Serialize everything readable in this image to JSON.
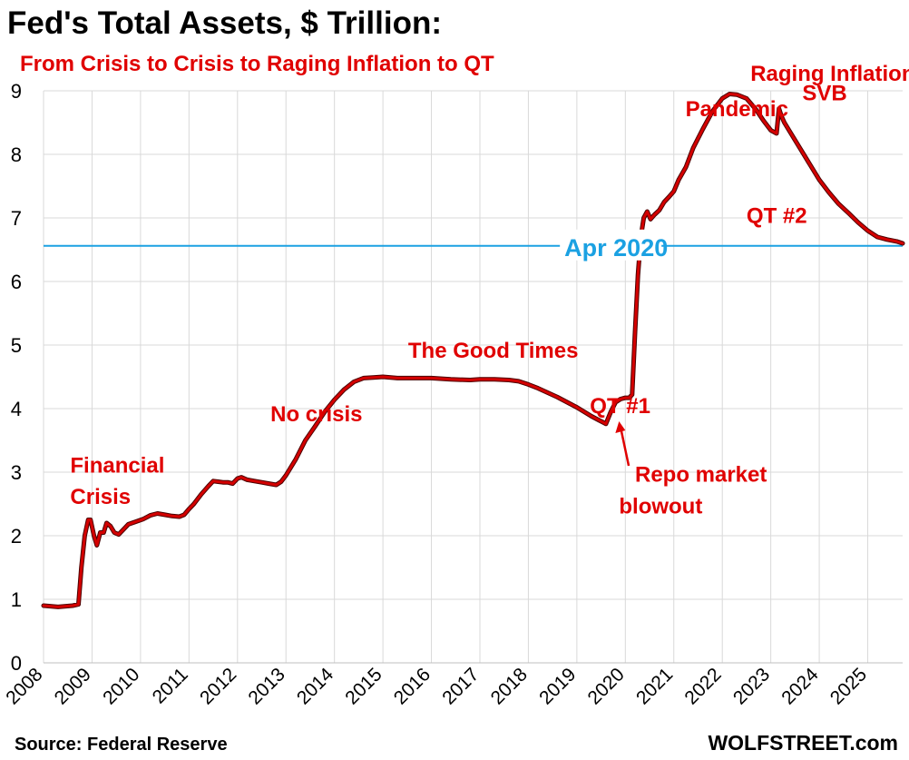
{
  "header": {
    "title": "Fed's Total Assets, $ Trillion:",
    "subtitle": "From Crisis to Crisis to Raging Inflation to QT"
  },
  "footer": {
    "source": "Source: Federal Reserve",
    "brand": "WOLFSTREET.com"
  },
  "colors": {
    "line": "#d40000",
    "line_outline": "#4a0000",
    "reference_line": "#1ba1e2",
    "annotation": "#e00000",
    "grid": "#d9d9d9"
  },
  "chart_data": {
    "type": "line",
    "title": "Fed's Total Assets, $ Trillion:",
    "subtitle": "From Crisis to Crisis to Raging Inflation to QT",
    "xlim": [
      2008.0,
      2025.72
    ],
    "ylim": [
      0,
      9
    ],
    "y_ticks": [
      0,
      1,
      2,
      3,
      4,
      5,
      6,
      7,
      8,
      9
    ],
    "x_ticks": [
      "2008",
      "2009",
      "2010",
      "2011",
      "2012",
      "2013",
      "2014",
      "2015",
      "2016",
      "2017",
      "2018",
      "2019",
      "2020",
      "2021",
      "2022",
      "2023",
      "2024",
      "2025"
    ],
    "grid": true,
    "legend": "none",
    "series": [
      {
        "x": [
          2008.0,
          2008.3,
          2008.6,
          2008.72,
          2008.78,
          2008.85,
          2008.92,
          2008.97,
          2009.04,
          2009.1,
          2009.17,
          2009.24,
          2009.3,
          2009.38,
          2009.46,
          2009.55,
          2009.65,
          2009.75,
          2009.9,
          2010.05,
          2010.2,
          2010.35,
          2010.5,
          2010.65,
          2010.8,
          2010.9,
          2011.0,
          2011.1,
          2011.25,
          2011.4,
          2011.5,
          2011.6,
          2011.7,
          2011.8,
          2011.9,
          2012.0,
          2012.08,
          2012.2,
          2012.35,
          2012.5,
          2012.65,
          2012.8,
          2012.9,
          2013.0,
          2013.2,
          2013.4,
          2013.6,
          2013.8,
          2014.0,
          2014.2,
          2014.4,
          2014.6,
          2014.8,
          2015.0,
          2015.3,
          2015.6,
          2016.0,
          2016.4,
          2016.8,
          2017.0,
          2017.3,
          2017.6,
          2017.8,
          2018.0,
          2018.2,
          2018.4,
          2018.6,
          2018.8,
          2019.0,
          2019.15,
          2019.3,
          2019.45,
          2019.55,
          2019.6,
          2019.7,
          2019.8,
          2019.9,
          2020.0,
          2020.08,
          2020.14,
          2020.2,
          2020.26,
          2020.32,
          2020.38,
          2020.45,
          2020.52,
          2020.6,
          2020.7,
          2020.8,
          2020.9,
          2021.0,
          2021.1,
          2021.25,
          2021.4,
          2021.6,
          2021.8,
          2022.0,
          2022.15,
          2022.3,
          2022.5,
          2022.7,
          2022.85,
          2023.0,
          2023.12,
          2023.17,
          2023.22,
          2023.28,
          2023.4,
          2023.6,
          2023.8,
          2024.0,
          2024.2,
          2024.4,
          2024.6,
          2024.8,
          2025.0,
          2025.2,
          2025.4,
          2025.6,
          2025.72
        ],
        "y": [
          0.9,
          0.88,
          0.9,
          0.92,
          1.5,
          2.0,
          2.25,
          2.25,
          2.0,
          1.85,
          2.05,
          2.05,
          2.2,
          2.15,
          2.05,
          2.02,
          2.1,
          2.18,
          2.22,
          2.26,
          2.32,
          2.35,
          2.33,
          2.31,
          2.3,
          2.33,
          2.42,
          2.5,
          2.65,
          2.78,
          2.86,
          2.85,
          2.84,
          2.84,
          2.82,
          2.9,
          2.92,
          2.88,
          2.86,
          2.84,
          2.82,
          2.8,
          2.85,
          2.95,
          3.2,
          3.5,
          3.72,
          3.95,
          4.14,
          4.3,
          4.42,
          4.48,
          4.49,
          4.5,
          4.48,
          4.48,
          4.48,
          4.46,
          4.45,
          4.46,
          4.46,
          4.45,
          4.43,
          4.38,
          4.32,
          4.25,
          4.18,
          4.1,
          4.02,
          3.95,
          3.88,
          3.82,
          3.78,
          3.76,
          3.95,
          4.1,
          4.15,
          4.17,
          4.17,
          4.22,
          5.2,
          6.1,
          6.7,
          7.0,
          7.1,
          6.98,
          7.05,
          7.12,
          7.25,
          7.33,
          7.42,
          7.6,
          7.8,
          8.1,
          8.4,
          8.68,
          8.88,
          8.95,
          8.94,
          8.88,
          8.7,
          8.53,
          8.38,
          8.33,
          8.72,
          8.6,
          8.5,
          8.35,
          8.1,
          7.85,
          7.6,
          7.4,
          7.22,
          7.08,
          6.93,
          6.8,
          6.7,
          6.66,
          6.63,
          6.6
        ]
      }
    ],
    "reference_line": {
      "y": 6.56,
      "label": "Apr 2020"
    },
    "annotations": [
      {
        "text": "Financial",
        "x": 2008.55,
        "y": 2.99
      },
      {
        "text": "Crisis",
        "x": 2008.55,
        "y": 2.5
      },
      {
        "text": "No crisis",
        "x": 2012.68,
        "y": 3.8
      },
      {
        "text": "The Good Times",
        "x": 2015.52,
        "y": 4.8
      },
      {
        "text": "QT #1",
        "x": 2019.27,
        "y": 3.93
      },
      {
        "text": "Repo market",
        "x": 2020.2,
        "y": 2.85
      },
      {
        "text": "blowout",
        "x": 2019.87,
        "y": 2.35
      },
      {
        "text": "Pandemic",
        "x": 2021.24,
        "y": 8.6
      },
      {
        "text": "Raging  Inflation",
        "x": 2022.58,
        "y": 9.16
      },
      {
        "text": "SVB",
        "x": 2023.65,
        "y": 8.85
      },
      {
        "text": "QT #2",
        "x": 2022.5,
        "y": 6.92
      }
    ]
  }
}
